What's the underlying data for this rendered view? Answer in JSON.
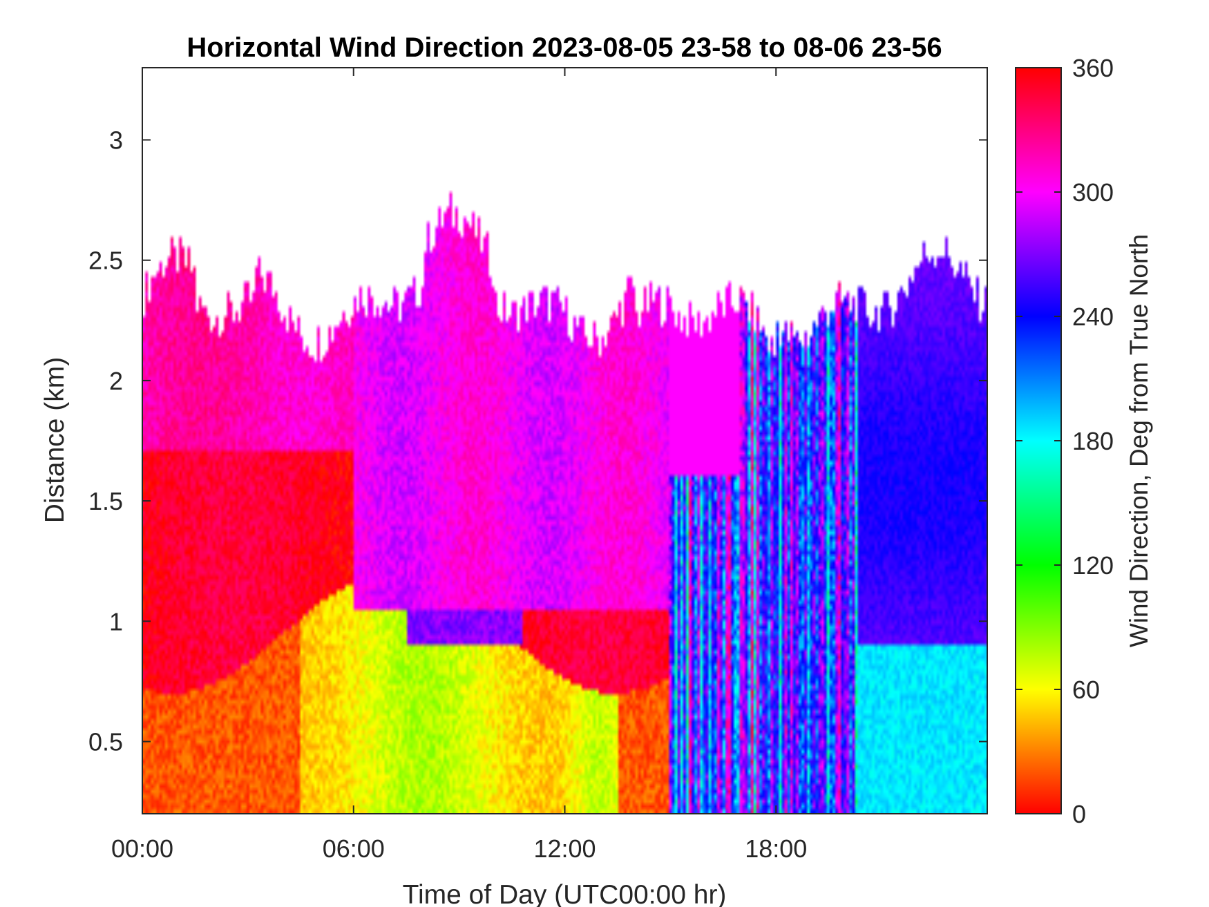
{
  "chart_data": {
    "type": "heatmap",
    "title": "Horizontal Wind Direction 2023-08-05 23-58 to 08-06 23-56",
    "xlabel": "Time of Day (UTC00:00 hr)",
    "ylabel": "Distance (km)",
    "x_ticks": [
      "00:00",
      "06:00",
      "12:00",
      "18:00"
    ],
    "x_tick_hours": [
      0,
      6,
      12,
      18
    ],
    "xlim_hours": [
      0,
      24
    ],
    "y_ticks": [
      "0.5",
      "1",
      "1.5",
      "2",
      "2.5",
      "3"
    ],
    "y_tick_values": [
      0.5,
      1,
      1.5,
      2,
      2.5,
      3
    ],
    "ylim_km": [
      0.2,
      3.3
    ],
    "colorbar": {
      "label": "Wind Direction, Deg from True North",
      "ticks": [
        "0",
        "60",
        "120",
        "180",
        "240",
        "300",
        "360"
      ],
      "tick_values": [
        0,
        60,
        120,
        180,
        240,
        300,
        360
      ],
      "range": [
        0,
        360
      ],
      "colormap": "hsv"
    },
    "grid": false,
    "data_summary": [
      {
        "time_hours": [
          0,
          6
        ],
        "height_km": [
          0.2,
          1.0
        ],
        "direction_deg": "0-40 (red-orange)"
      },
      {
        "time_hours": [
          0,
          6
        ],
        "height_km": [
          1.0,
          1.7
        ],
        "direction_deg": "340-360 (red)"
      },
      {
        "time_hours": [
          0,
          6
        ],
        "height_km": [
          1.7,
          2.5
        ],
        "direction_deg": "310-330 (magenta)"
      },
      {
        "time_hours": [
          5,
          13
        ],
        "height_km": [
          0.2,
          1.0
        ],
        "direction_deg": "40-110 (yellow-green)"
      },
      {
        "time_hours": [
          8,
          10
        ],
        "height_km": [
          0.9,
          1.3
        ],
        "direction_deg": "260-280 (purple)"
      },
      {
        "time_hours": [
          6,
          15
        ],
        "height_km": [
          1.0,
          2.5
        ],
        "direction_deg": "290-315 (magenta-violet)"
      },
      {
        "time_hours": [
          15,
          20
        ],
        "height_km": [
          0.2,
          1.6
        ],
        "direction_deg": "mixed 100-280 (striped)"
      },
      {
        "time_hours": [
          16,
          24
        ],
        "height_km": [
          1.0,
          2.4
        ],
        "direction_deg": "245-285 (blue-violet)"
      },
      {
        "time_hours": [
          20,
          24
        ],
        "height_km": [
          0.2,
          0.9
        ],
        "direction_deg": "170-200 (cyan)"
      }
    ]
  }
}
